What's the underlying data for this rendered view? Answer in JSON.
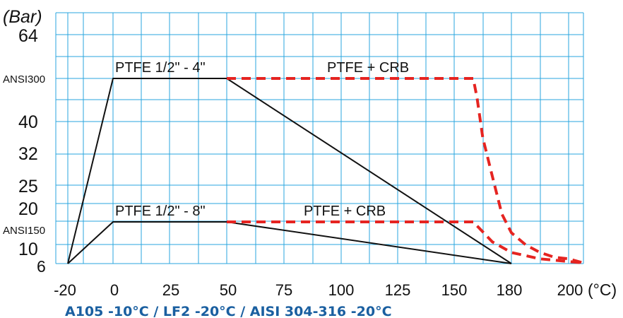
{
  "chart_data": {
    "type": "line",
    "unit_y": "(Bar)",
    "unit_x": "(°C)",
    "x_ticks": [
      "-20",
      "0",
      "25",
      "50",
      "75",
      "100",
      "125",
      "150",
      "180",
      "200"
    ],
    "y_ticks": [
      "64",
      "ANSI300",
      "40",
      "32",
      "25",
      "20",
      "ANSI150",
      "10",
      "6"
    ],
    "grid": true,
    "colors": {
      "grid": "#29a6df",
      "limit": "#111111",
      "dashed": "#e52421",
      "note": "#1a5fa0"
    },
    "series": [
      {
        "name": "PTFE  1/2\" - 4\"",
        "style": "solid",
        "points": [
          [
            -20,
            6
          ],
          [
            0,
            51
          ],
          [
            50,
            51
          ],
          [
            180,
            6
          ]
        ]
      },
      {
        "name": "PTFE  + CRB",
        "style": "dashed",
        "points": [
          [
            50,
            51
          ],
          [
            160,
            51
          ],
          [
            162,
            46
          ],
          [
            165,
            36
          ],
          [
            170,
            27
          ],
          [
            175,
            21
          ],
          [
            180,
            16
          ],
          [
            185,
            12
          ],
          [
            190,
            9.5
          ],
          [
            195,
            8
          ],
          [
            200,
            7.5
          ],
          [
            205,
            6.2
          ]
        ]
      },
      {
        "name": "PTFE  1/2\" - 8\"",
        "style": "solid",
        "points": [
          [
            -20,
            6
          ],
          [
            0,
            19.6
          ],
          [
            50,
            19.6
          ],
          [
            180,
            6
          ]
        ]
      },
      {
        "name": "PTFE  + CRB",
        "style": "dashed",
        "points": [
          [
            50,
            19.6
          ],
          [
            160,
            19.6
          ],
          [
            170,
            13
          ],
          [
            180,
            9.5
          ],
          [
            190,
            7.5
          ],
          [
            205,
            6.2
          ]
        ]
      }
    ]
  },
  "footnote": "A105 -10°C  /  LF2 -20°C / AISI 304-316 -20°C"
}
